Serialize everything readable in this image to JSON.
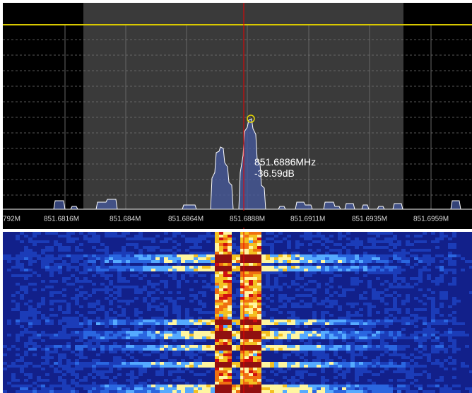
{
  "axis": {
    "tick_labels": [
      "792M",
      "851.6816M",
      "851.684M",
      "851.6864M",
      "851.6888M",
      "851.6911M",
      "851.6935M",
      "851.6959M"
    ]
  },
  "marker": {
    "frequency": "851.6886MHz",
    "level": "-36.59dB"
  }
}
